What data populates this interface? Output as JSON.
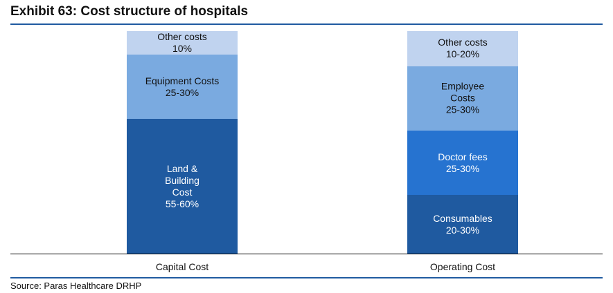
{
  "chart_data": {
    "type": "stacked_bar",
    "title": "Exhibit 63: Cost structure of hospitals",
    "source": "Source: Paras Healthcare DRHP",
    "categories": [
      "Capital Cost",
      "Operating Cost"
    ],
    "series": [
      {
        "name": "Land & Building Cost",
        "color": "#1f5aa0",
        "values": [
          57.5,
          null
        ],
        "value_labels": [
          "55-60%",
          null
        ]
      },
      {
        "name": "Consumables",
        "color": "#1f5aa0",
        "values": [
          null,
          25
        ],
        "value_labels": [
          null,
          "20-30%"
        ]
      },
      {
        "name": "Equipment Costs",
        "color": "#7aaae0",
        "values": [
          27.5,
          null
        ],
        "value_labels": [
          "25-30%",
          null
        ]
      },
      {
        "name": "Doctor fees",
        "color": "#2673d0",
        "values": [
          null,
          27.5
        ],
        "value_labels": [
          null,
          "25-30%"
        ]
      },
      {
        "name": "Employee Costs",
        "color": "#7aaae0",
        "values": [
          null,
          27.5
        ],
        "value_labels": [
          null,
          "25-30%"
        ]
      },
      {
        "name": "Other costs",
        "color": "#c0d3ef",
        "values": [
          10,
          15
        ],
        "value_labels": [
          "10%",
          "10-20%"
        ]
      }
    ]
  }
}
